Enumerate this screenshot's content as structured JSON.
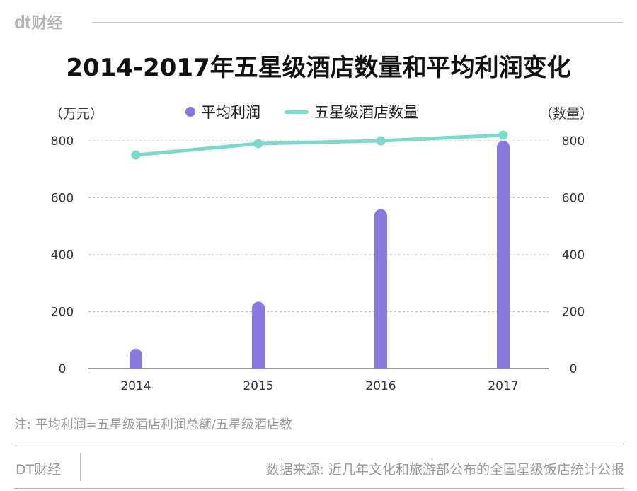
{
  "header": {
    "logo_text": "dt",
    "brand_name": "财经"
  },
  "chart_data": {
    "type": "bar",
    "title": "2014-2017年五星级酒店数量和平均利润变化",
    "categories": [
      "2014",
      "2015",
      "2016",
      "2017"
    ],
    "series": [
      {
        "name": "平均利润",
        "type": "bar",
        "axis": "left",
        "values": [
          70,
          235,
          560,
          800
        ],
        "color": "#8878e0"
      },
      {
        "name": "五星级酒店数量",
        "type": "line",
        "axis": "right",
        "values": [
          750,
          790,
          800,
          820
        ],
        "color": "#7dd9cc"
      }
    ],
    "ylabel_left": "（万元）",
    "ylabel_right": "（数量）",
    "ylim": [
      0,
      800
    ],
    "yticks": [
      "0",
      "200",
      "400",
      "600",
      "800"
    ],
    "grid": true,
    "legend_position": "top-center"
  },
  "note": "注: 平均利润=五星级酒店利润总额/五星级酒店数",
  "footer": {
    "brand": "DT财经",
    "source": "数据来源: 近几年文化和旅游部公布的全国星级饭店统计公报"
  }
}
